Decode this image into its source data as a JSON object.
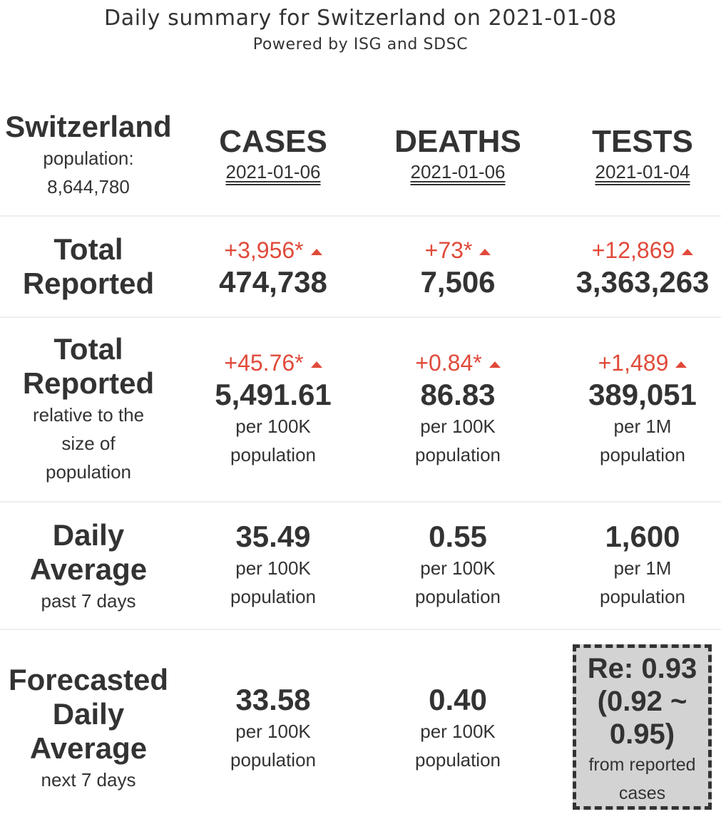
{
  "header": {
    "title": "Daily summary for Switzerland on 2021-01-08",
    "subtitle": "Powered by ISG and SDSC"
  },
  "country": {
    "name": "Switzerland",
    "population_label": "population:",
    "population_value": "8,644,780"
  },
  "columns": [
    {
      "name": "CASES",
      "date": "2021-01-06"
    },
    {
      "name": "DEATHS",
      "date": "2021-01-06"
    },
    {
      "name": "TESTS",
      "date": "2021-01-04"
    }
  ],
  "total_reported": {
    "label_line1": "Total",
    "label_line2": "Reported",
    "cells": [
      {
        "delta": "+3,956*",
        "value": "474,738"
      },
      {
        "delta": "+73*",
        "value": "7,506"
      },
      {
        "delta": "+12,869",
        "value": "3,363,263"
      }
    ]
  },
  "relative": {
    "label_line1": "Total",
    "label_line2": "Reported",
    "desc_line1": "relative to the",
    "desc_line2": "size of",
    "desc_line3": "population",
    "cells": [
      {
        "delta": "+45.76*",
        "value": "5,491.61",
        "unit1": "per 100K",
        "unit2": "population"
      },
      {
        "delta": "+0.84*",
        "value": "86.83",
        "unit1": "per 100K",
        "unit2": "population"
      },
      {
        "delta": "+1,489",
        "value": "389,051",
        "unit1": "per 1M",
        "unit2": "population"
      }
    ]
  },
  "daily_average": {
    "label_line1": "Daily",
    "label_line2": "Average",
    "desc": "past 7 days",
    "cells": [
      {
        "value": "35.49",
        "unit1": "per 100K",
        "unit2": "population"
      },
      {
        "value": "0.55",
        "unit1": "per 100K",
        "unit2": "population"
      },
      {
        "value": "1,600",
        "unit1": "per 1M",
        "unit2": "population"
      }
    ]
  },
  "forecast": {
    "label_line1": "Forecasted",
    "label_line2": "Daily",
    "label_line3": "Average",
    "desc": "next 7 days",
    "cells": [
      {
        "value": "33.58",
        "unit1": "per 100K",
        "unit2": "population"
      },
      {
        "value": "0.40",
        "unit1": "per 100K",
        "unit2": "population"
      }
    ]
  },
  "re": {
    "line1": "Re: 0.93",
    "line2": "(0.92 ~",
    "line3": "0.95)",
    "source1": "from reported",
    "source2": "cases"
  },
  "colors": {
    "delta_increase": "#e04a3a",
    "text": "#333333",
    "re_box_bg": "#d3d3d3"
  },
  "icons": {
    "increase": "triangle-up-icon"
  }
}
